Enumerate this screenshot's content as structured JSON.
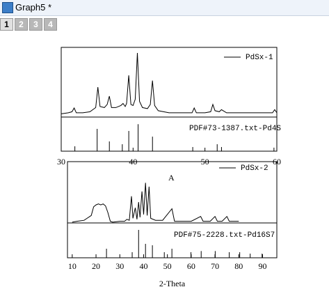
{
  "window": {
    "title": "Graph5 *",
    "tabs": [
      "1",
      "2",
      "3",
      "4"
    ],
    "active_tab": 0
  },
  "chart_data": [
    {
      "type": "line",
      "xlim": [
        30,
        60
      ],
      "xticks": [
        30,
        40,
        50,
        60
      ],
      "ylim": [
        0,
        100
      ],
      "legend": "upper right",
      "series": [
        {
          "name": "PdSx-1",
          "color": "#000000",
          "style": "line",
          "x": [
            30,
            31,
            31.5,
            31.8,
            32.1,
            33,
            34,
            34.8,
            35.1,
            35.4,
            36,
            36.4,
            36.7,
            37,
            37.6,
            38.3,
            38.6,
            38.9,
            39.1,
            39.4,
            39.7,
            40,
            40.3,
            40.6,
            40.9,
            41.3,
            42,
            42.4,
            42.7,
            43,
            43.5,
            45,
            46,
            48.2,
            48.5,
            48.8,
            50,
            50.8,
            51.1,
            51.4,
            52,
            52.3,
            53,
            55,
            57,
            58,
            59.4,
            59.7,
            60
          ],
          "values": [
            36,
            37,
            38,
            41.6,
            37,
            37,
            38,
            42,
            61.7,
            43,
            42,
            45,
            53,
            42,
            42,
            44,
            46,
            43,
            46,
            73,
            45,
            44,
            50,
            94.6,
            48,
            42,
            41,
            45,
            68,
            44,
            39,
            37,
            37,
            37,
            41.6,
            37,
            37,
            38,
            45,
            39,
            38,
            40,
            37,
            37,
            37,
            37,
            37,
            40,
            37
          ]
        },
        {
          "name": "PDF#73-1387.txt-Pd4S",
          "color": "#000000",
          "style": "stick",
          "x": [
            31.9,
            35.0,
            36.7,
            38.5,
            39.4,
            40.7,
            42.7,
            48.3,
            51.7,
            52.3,
            59.6
          ],
          "values": [
            4.7,
            21.5,
            9.4,
            6.7,
            19.5,
            26,
            14,
            4,
            6.7,
            4,
            3.4
          ]
        }
      ]
    },
    {
      "type": "line",
      "xlim": [
        8,
        96
      ],
      "xticks": [
        10,
        20,
        30,
        40,
        50,
        60,
        70,
        80,
        90
      ],
      "ylim": [
        0,
        100
      ],
      "legend": "upper right",
      "xlabel": "2-Theta",
      "annotation": "A",
      "series": [
        {
          "name": "PdSx-2",
          "color": "#000000",
          "style": "line",
          "x": [
            10,
            12,
            15,
            18,
            19,
            20,
            21,
            22,
            23,
            24,
            25,
            26,
            27,
            30,
            32,
            33,
            34,
            34.9,
            35.5,
            36.5,
            37.2,
            37.9,
            38.5,
            39.3,
            40,
            40.8,
            41.5,
            42.3,
            43,
            45,
            48,
            51.9,
            53,
            56,
            60,
            64,
            65,
            68,
            70,
            71,
            73,
            75,
            76,
            78,
            80
          ],
          "values": [
            37,
            38,
            39,
            44,
            53,
            55,
            56,
            55,
            56,
            54,
            47,
            38,
            37,
            38,
            38,
            40,
            39,
            64,
            41,
            52,
            40,
            58,
            42,
            69,
            45,
            78,
            44,
            74,
            41,
            39,
            39,
            51,
            38,
            38,
            38,
            43,
            38,
            38,
            43,
            38,
            38,
            43,
            38,
            38,
            38
          ]
        },
        {
          "name": "PDF#75-2228.txt-Pd16S7",
          "color": "#000000",
          "style": "stick",
          "x": [
            24.4,
            35.2,
            37.9,
            40.8,
            43.7,
            48.7,
            51.9,
            59.9,
            64.2,
            70.1,
            76,
            80.4,
            84.8,
            89.8
          ],
          "values": [
            9.4,
            5.8,
            29,
            14.5,
            13,
            5.8,
            9.4,
            5.8,
            7,
            7,
            5.8,
            5.8,
            4.3,
            4.3
          ]
        }
      ]
    }
  ]
}
